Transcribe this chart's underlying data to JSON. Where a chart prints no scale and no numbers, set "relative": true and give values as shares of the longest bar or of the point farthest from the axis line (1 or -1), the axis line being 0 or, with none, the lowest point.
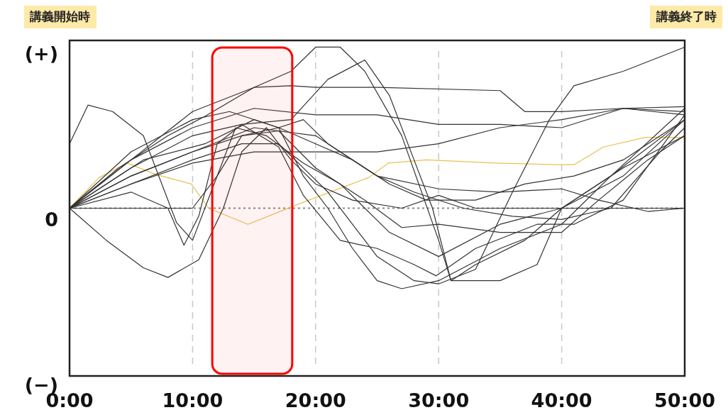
{
  "chart_data": {
    "type": "line",
    "xlim": [
      0,
      50
    ],
    "relative": true,
    "xticks": [
      {
        "value": 0,
        "label": "0:00"
      },
      {
        "value": 10,
        "label": "10:00"
      },
      {
        "value": 20,
        "label": "20:00"
      },
      {
        "value": 30,
        "label": "30:00"
      },
      {
        "value": 40,
        "label": "40:00"
      },
      {
        "value": 50,
        "label": "50:00"
      }
    ],
    "grid": "x",
    "marker": "none",
    "line_style": "solid",
    "ref_lines": [
      {
        "axis": "y",
        "value": 0,
        "color": "#888888",
        "line_style": "dotted"
      }
    ],
    "bands": [
      {
        "axis": "x",
        "from": 11.6,
        "to": 18.1,
        "color": "#ff0000"
      }
    ],
    "annotations": [
      "講義開始時",
      "講義終了時",
      "(+)",
      "0",
      "(−)"
    ],
    "series": [
      {
        "color": "#e8c050",
        "x": [
          0,
          2.4,
          4.7,
          7,
          9.9,
          11.3,
          14.5,
          19.1,
          24.3,
          25.9,
          29,
          34.7,
          39.7,
          41,
          43.4,
          46.8,
          50
        ],
        "values": [
          0,
          0.19,
          0.28,
          0.21,
          0.15,
          0,
          -0.1,
          0.04,
          0.19,
          0.28,
          0.3,
          0.28,
          0.27,
          0.27,
          0.38,
          0.44,
          0.44
        ]
      },
      {
        "color": "#333333",
        "x": [
          0,
          1.5,
          3.5,
          6,
          8.7,
          10,
          11.5,
          13.5,
          16,
          19,
          22,
          26,
          30,
          35,
          40,
          45,
          50
        ],
        "values": [
          0.4,
          0.64,
          0.6,
          0.45,
          -0.09,
          -0.2,
          0.1,
          0.5,
          0.45,
          0.28,
          0.15,
          -0.15,
          -0.3,
          -0.1,
          0,
          0.2,
          0.55
        ]
      },
      {
        "color": "#333333",
        "x": [
          0,
          5,
          8,
          9.3,
          10.5,
          12,
          14,
          17,
          19,
          22,
          25,
          28,
          29.8,
          33,
          38,
          41,
          45,
          50
        ],
        "values": [
          0,
          0.1,
          0,
          -0.23,
          -0.05,
          0.4,
          0.52,
          0.38,
          0.08,
          -0.2,
          -0.25,
          -0.35,
          -0.42,
          -0.25,
          -0.1,
          -0.1,
          0.05,
          0.58
        ]
      },
      {
        "color": "#333333",
        "x": [
          0,
          3,
          6,
          8,
          10.5,
          12.5,
          14,
          16,
          18,
          20,
          23,
          27,
          30,
          33,
          38,
          44,
          50
        ],
        "values": [
          0,
          -0.2,
          -0.37,
          -0.43,
          -0.32,
          0,
          0.35,
          0.5,
          0.3,
          0.15,
          0.05,
          0,
          0.08,
          0,
          0,
          0,
          0
        ]
      },
      {
        "color": "#333333",
        "x": [
          0,
          4,
          8,
          11,
          15,
          18,
          20,
          22,
          24,
          27,
          30,
          31,
          35,
          38,
          40,
          45,
          50
        ],
        "values": [
          0,
          0.25,
          0.45,
          0.57,
          0.75,
          0.85,
          1,
          1,
          0.85,
          0.45,
          -0.2,
          -0.45,
          -0.45,
          -0.35,
          0,
          0.25,
          0.45
        ]
      },
      {
        "color": "#333333",
        "x": [
          0,
          5,
          10,
          13,
          17,
          19,
          21,
          25,
          28,
          32,
          36,
          40,
          44,
          48,
          50
        ],
        "values": [
          0,
          0.35,
          0.55,
          0.6,
          0.5,
          0.55,
          0.4,
          0.2,
          0.1,
          0,
          -0.05,
          -0.07,
          0,
          0.35,
          0.5
        ]
      },
      {
        "color": "#333333",
        "x": [
          0,
          5,
          10,
          15,
          18,
          20,
          25,
          35,
          37,
          40,
          45,
          50
        ],
        "values": [
          0,
          0.3,
          0.6,
          0.75,
          0.76,
          0.75,
          0.75,
          0.73,
          0.6,
          0.6,
          0.62,
          0.6
        ]
      },
      {
        "color": "#333333",
        "x": [
          0,
          5,
          10,
          15,
          20,
          25,
          30,
          35,
          40,
          45,
          50
        ],
        "values": [
          0,
          0.3,
          0.5,
          0.62,
          0.58,
          0.58,
          0.52,
          0.52,
          0.5,
          0.62,
          0.63
        ]
      },
      {
        "color": "#333333",
        "x": [
          0,
          5,
          10,
          14,
          17,
          21,
          25,
          28,
          30,
          33,
          36,
          39,
          41,
          45,
          50
        ],
        "values": [
          0,
          0.15,
          0.3,
          0.4,
          0.4,
          0.1,
          -0.3,
          -0.45,
          -0.47,
          -0.38,
          0.1,
          0.55,
          0.76,
          0.85,
          1
        ]
      },
      {
        "color": "#333333",
        "x": [
          0,
          5,
          10,
          14,
          18,
          21,
          24,
          26,
          28,
          29.5,
          31,
          33,
          37,
          40,
          44,
          50
        ],
        "values": [
          0,
          0.25,
          0.45,
          0.52,
          0.55,
          0.8,
          0.92,
          0.7,
          0.3,
          0,
          -0.45,
          -0.35,
          -0.2,
          0,
          0.2,
          0.55
        ]
      },
      {
        "color": "#333333",
        "x": [
          0,
          5,
          10,
          14,
          17,
          20,
          23,
          26,
          29,
          33,
          37,
          41,
          45,
          50
        ],
        "values": [
          0,
          0.2,
          0.35,
          0.45,
          0.5,
          0.4,
          0.3,
          0.15,
          0.05,
          0.05,
          0.15,
          0.2,
          0.3,
          0.55
        ]
      },
      {
        "color": "#333333",
        "x": [
          0,
          5,
          10,
          15,
          20,
          25,
          30,
          35,
          40,
          45,
          50
        ],
        "values": [
          0,
          0.15,
          0.28,
          0.35,
          0.35,
          0.35,
          0.4,
          0.5,
          0.55,
          0.62,
          0.58
        ]
      },
      {
        "color": "#333333",
        "x": [
          0,
          10,
          12,
          14,
          17,
          20,
          24,
          27,
          30,
          35,
          40,
          43,
          47,
          50
        ],
        "values": [
          0,
          0,
          0.2,
          0.45,
          0.48,
          0.25,
          0.05,
          -0.12,
          -0.1,
          -0.15,
          -0.15,
          0.05,
          0.3,
          0.45
        ]
      },
      {
        "color": "#333333",
        "x": [
          0,
          6,
          11,
          15,
          17,
          19,
          21,
          23,
          25,
          27,
          30,
          35,
          40,
          44,
          50
        ],
        "values": [
          0,
          0.3,
          0.4,
          0.55,
          0.5,
          0.2,
          0,
          -0.25,
          -0.45,
          -0.5,
          -0.45,
          -0.25,
          -0.1,
          0.2,
          0.62
        ]
      },
      {
        "color": "#333333",
        "x": [
          0,
          5,
          10,
          15,
          20,
          25,
          30,
          35,
          40,
          43,
          47,
          50
        ],
        "values": [
          0,
          0.2,
          0.35,
          0.5,
          0.45,
          0.2,
          0.12,
          0.1,
          0.12,
          0.05,
          -0.02,
          0
        ]
      }
    ]
  }
}
